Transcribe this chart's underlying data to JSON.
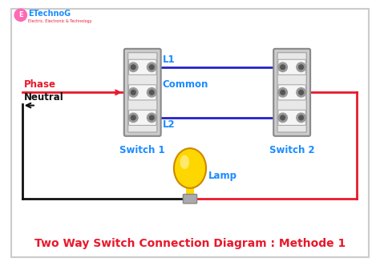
{
  "title": "Two Way Switch Connection Diagram : Methode 1",
  "title_color": "#e8192c",
  "title_fontsize": 10,
  "bg_color": "#ffffff",
  "border_color": "#cccccc",
  "phase_label": "Phase",
  "neutral_label": "Neutral",
  "switch1_label": "Switch 1",
  "switch2_label": "Switch 2",
  "common_label": "Common",
  "l1_label": "L1",
  "l2_label": "L2",
  "lamp_label": "Lamp",
  "label_color": "#1a8cff",
  "red_color": "#e8192c",
  "blue_color": "#2222cc",
  "black_color": "#111111",
  "logo_text": "ETechnoG",
  "logo_color": "#1a8cff",
  "logo_sub_color": "#e8192c",
  "logo_e_color": "#ff69b4"
}
